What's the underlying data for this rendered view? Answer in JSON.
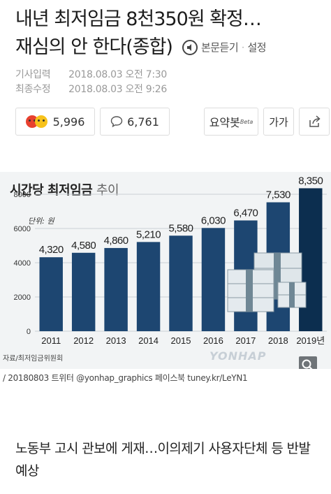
{
  "article": {
    "title_line1": "내년 최저임금 8천350원 확정…",
    "title_line2": "재심의 안 한다(종합)",
    "listen_label": "본문듣기",
    "listen_sep": "·",
    "settings_label": "설정",
    "input_label": "기사입력",
    "input_time": "2018.08.03 오전 7:30",
    "modified_label": "최종수정",
    "modified_time": "2018.08.03 오전 9:26",
    "reactions_count": "5,996",
    "comments_count": "6,761",
    "summary_label": "요약봇",
    "summary_beta": "Beta",
    "font_size_label": "가가",
    "credit": "/ 20180803  트위터 @yonhap_graphics  페이스북 tuney.kr/LeYN1",
    "lead_text": "노동부 고시 관보에 게재…이의제기 사용자단체 등 반발 예상"
  },
  "colors": {
    "bar": "#1d4671",
    "bar_last": "#0c2e4f",
    "reaction_angry": "#e8412f",
    "reaction_smile": "#f7c21b"
  },
  "icons": [
    "listen-icon",
    "reaction-face-icon",
    "comment-icon",
    "share-icon",
    "magnify-icon"
  ],
  "chart": {
    "title": "시간당 최저임금",
    "subtitle": "추이",
    "unit": "단위: 원",
    "source": "자료/최저임금위원회",
    "watermark": "YONHAP"
  },
  "chart_data": {
    "type": "bar",
    "title": "시간당 최저임금 추이",
    "ylabel": "단위: 원",
    "categories": [
      "2011",
      "2012",
      "2013",
      "2014",
      "2015",
      "2016",
      "2017",
      "2018",
      "2019년"
    ],
    "values": [
      4320,
      4580,
      4860,
      5210,
      5580,
      6030,
      6470,
      7530,
      8350
    ],
    "value_labels": [
      "4,320",
      "4,580",
      "4,860",
      "5,210",
      "5,580",
      "6,030",
      "6,470",
      "7,530",
      "8,350"
    ],
    "yticks": [
      "0",
      "2000",
      "4000",
      "6000",
      "8000"
    ],
    "ylim": [
      0,
      8000
    ],
    "grid": true
  }
}
